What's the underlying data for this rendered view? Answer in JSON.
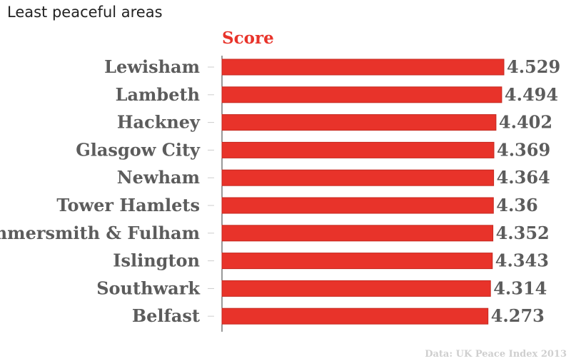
{
  "title": "Least peaceful areas",
  "source": "Data: UK Peace Index 2013",
  "colors": {
    "bar": "#e8332a",
    "bar_outline": "#c42820",
    "label": "#5c5c5c",
    "series_label": "#e8332a",
    "source": "#cfcfcf",
    "axis": "#333333"
  },
  "chart_data": {
    "type": "bar",
    "orientation": "horizontal",
    "categories": [
      "Lewisham",
      "Lambeth",
      "Hackney",
      "Glasgow City",
      "Newham",
      "Tower Hamlets",
      "Hammersmith & Fulham",
      "Islington",
      "Southwark",
      "Belfast"
    ],
    "value_labels": [
      "4.529",
      "4.494",
      "4.402",
      "4.369",
      "4.364",
      "4.36",
      "4.352",
      "4.343",
      "4.314",
      "4.273"
    ],
    "series": [
      {
        "name": "Score",
        "values": [
          4.529,
          4.494,
          4.402,
          4.369,
          4.364,
          4.36,
          4.352,
          4.343,
          4.314,
          4.273
        ]
      }
    ],
    "xlim": [
      0,
      4.529
    ],
    "grid": false,
    "legend": "none"
  }
}
